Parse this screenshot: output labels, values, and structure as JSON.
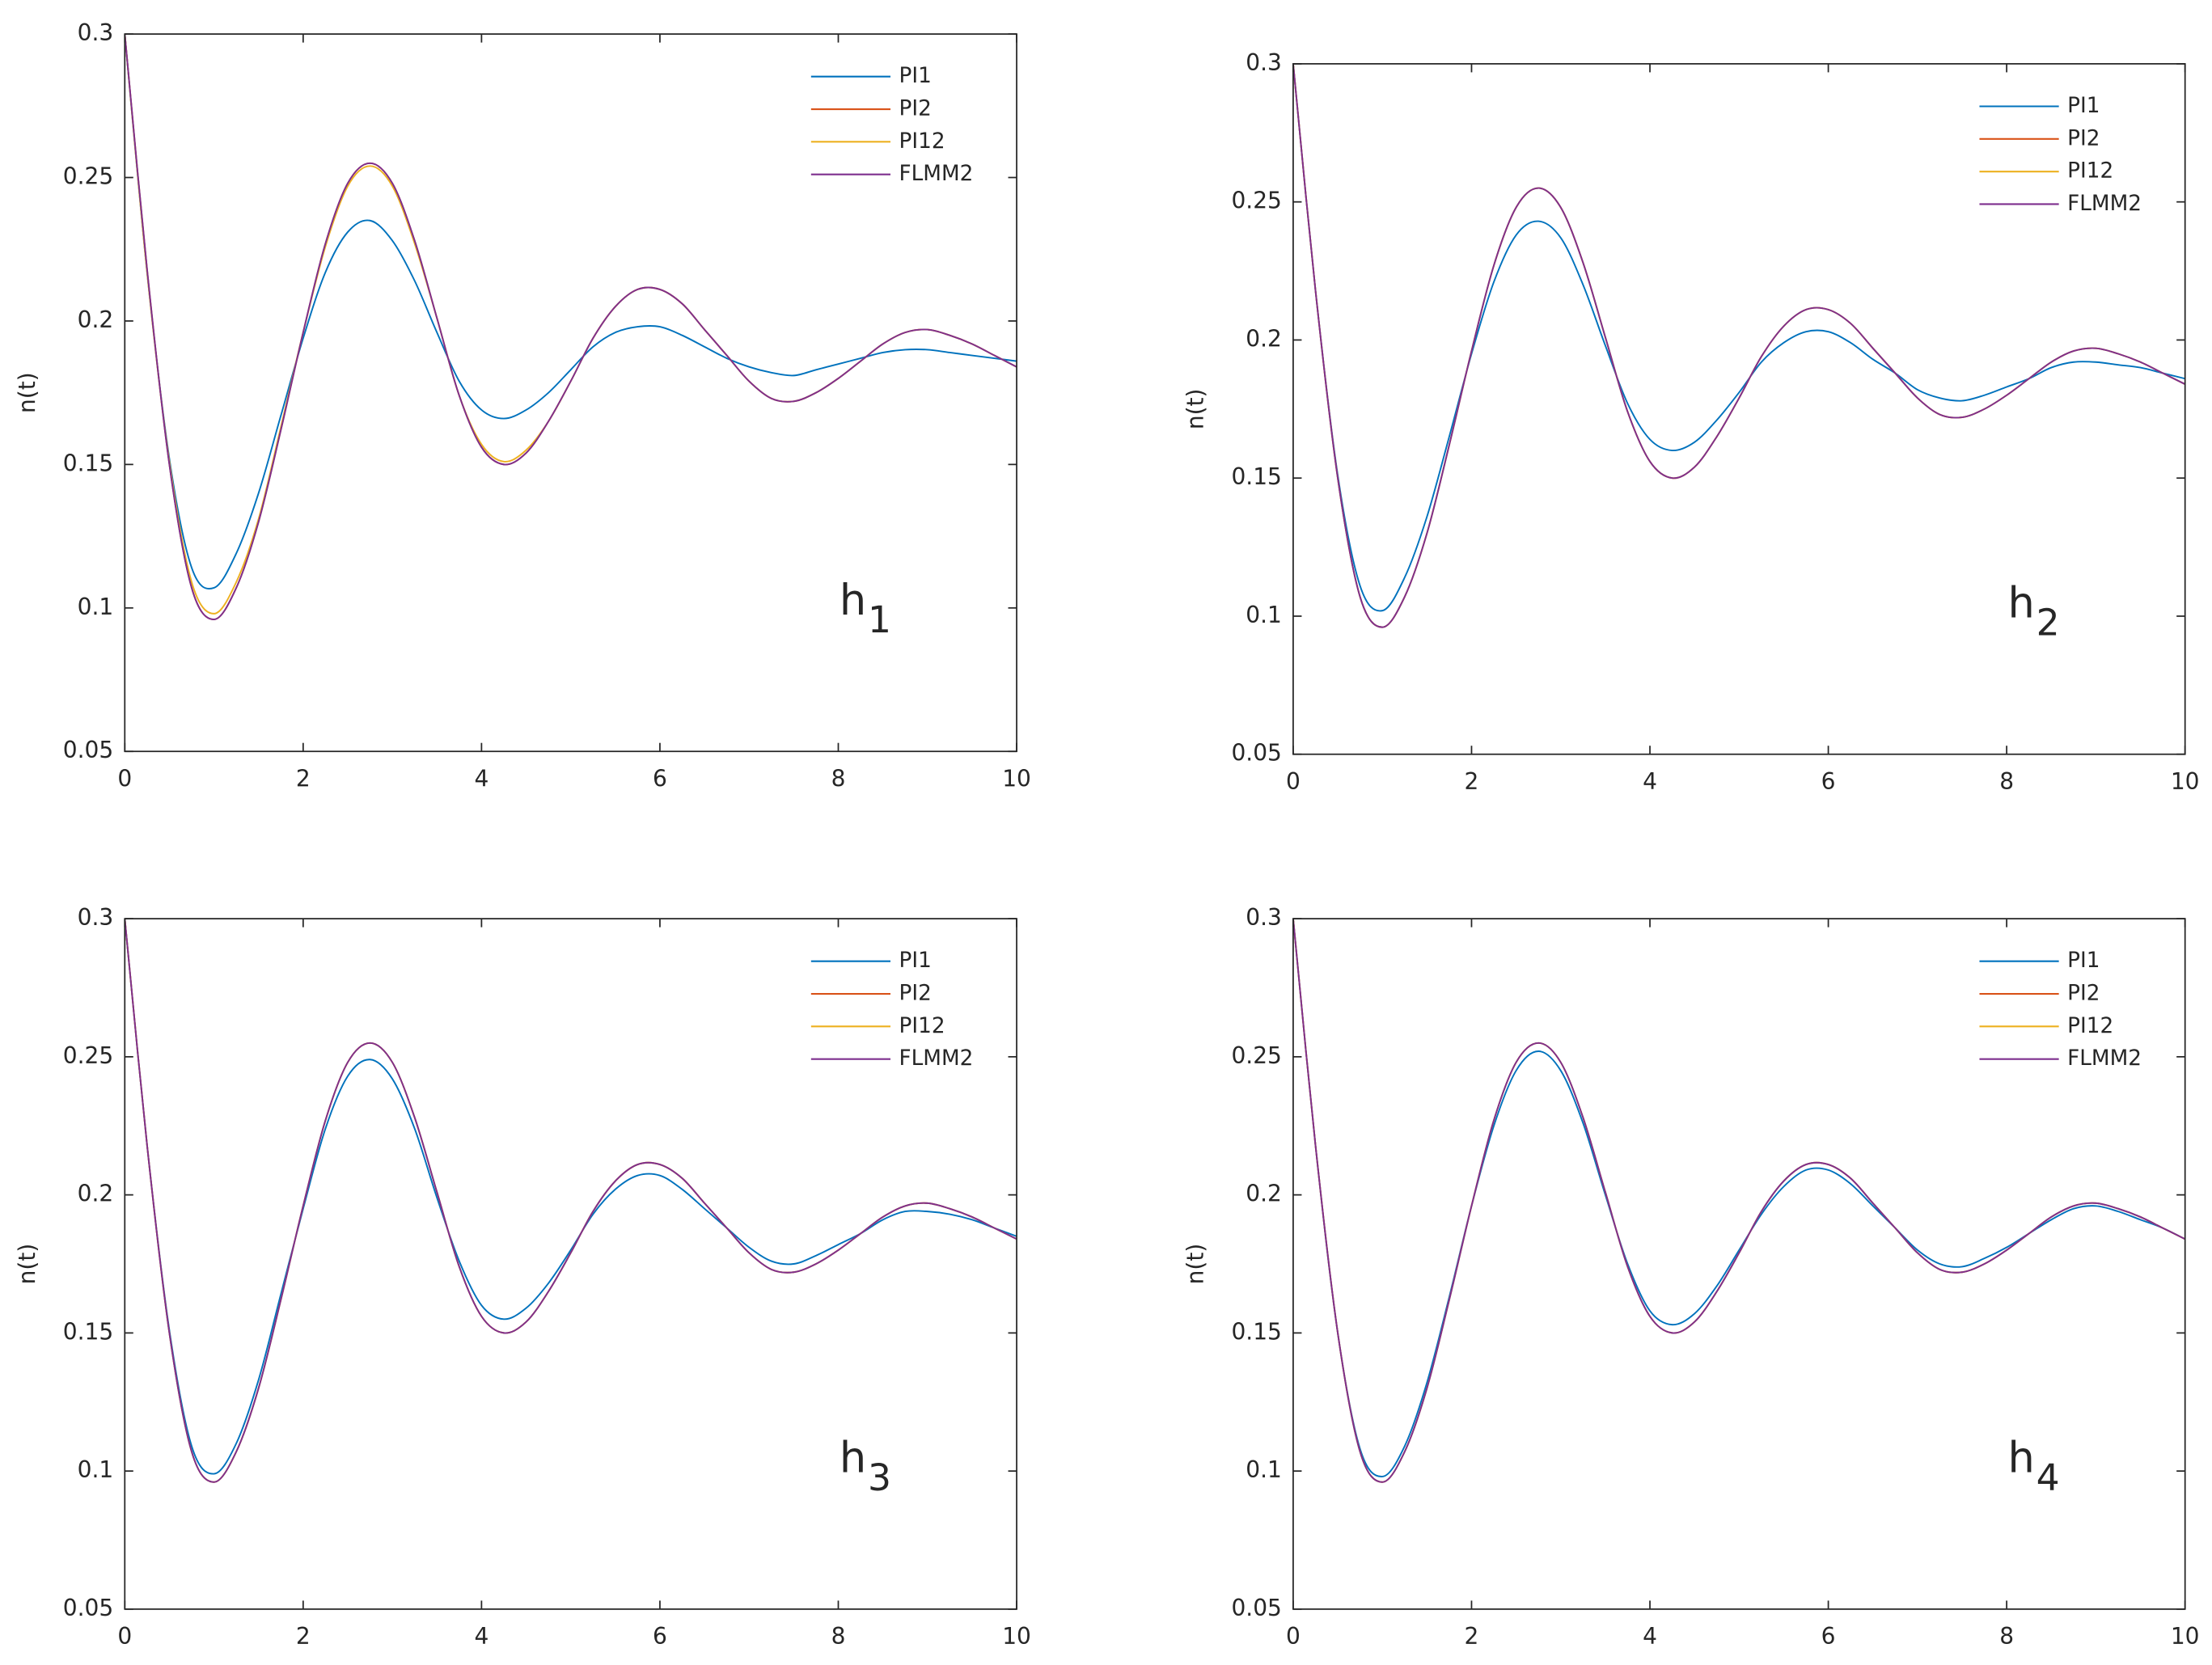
{
  "chart_data": [
    {
      "type": "line",
      "ylabel": "n(t)",
      "annotation": "h",
      "annotation_subscript": "1",
      "xlim": [
        0,
        10
      ],
      "ylim": [
        0.05,
        0.3
      ],
      "xticks": [
        0,
        2,
        4,
        6,
        8,
        10
      ],
      "yticks": [
        0.05,
        0.1,
        0.15,
        0.2,
        0.25,
        0.3
      ],
      "grid": false,
      "legend": "upper right",
      "x": [
        0,
        0.25,
        0.5,
        0.75,
        1,
        1.25,
        1.5,
        1.75,
        2,
        2.25,
        2.5,
        2.75,
        3,
        3.25,
        3.5,
        3.75,
        4,
        4.25,
        4.5,
        4.75,
        5,
        5.25,
        5.5,
        5.75,
        6,
        6.25,
        6.5,
        6.75,
        7,
        7.25,
        7.5,
        7.75,
        8,
        8.25,
        8.5,
        8.75,
        9,
        9.25,
        9.5,
        9.75,
        10
      ],
      "series": [
        {
          "name": "PI1",
          "color": "#0072BD",
          "values": [
            0.3,
            0.217,
            0.152,
            0.114,
            0.107,
            0.119,
            0.14,
            0.167,
            0.194,
            0.217,
            0.231,
            0.235,
            0.228,
            0.214,
            0.196,
            0.179,
            0.169,
            0.166,
            0.169,
            0.175,
            0.183,
            0.191,
            0.196,
            0.198,
            0.198,
            0.195,
            0.191,
            0.187,
            0.184,
            0.182,
            0.181,
            0.183,
            0.185,
            0.187,
            0.189,
            0.19,
            0.19,
            0.189,
            0.188,
            0.187,
            0.186
          ]
        },
        {
          "name": "PI2",
          "color": "#D95319",
          "values": [
            0.3,
            0.218,
            0.15,
            0.107,
            0.096,
            0.107,
            0.13,
            0.162,
            0.196,
            0.227,
            0.248,
            0.255,
            0.248,
            0.228,
            0.201,
            0.174,
            0.156,
            0.15,
            0.154,
            0.165,
            0.179,
            0.194,
            0.205,
            0.211,
            0.211,
            0.206,
            0.197,
            0.188,
            0.179,
            0.173,
            0.172,
            0.175,
            0.18,
            0.186,
            0.192,
            0.196,
            0.197,
            0.195,
            0.192,
            0.188,
            0.184
          ]
        },
        {
          "name": "PI12",
          "color": "#EDB120",
          "values": [
            0.3,
            0.217,
            0.151,
            0.109,
            0.098,
            0.109,
            0.131,
            0.163,
            0.196,
            0.226,
            0.247,
            0.254,
            0.247,
            0.227,
            0.201,
            0.174,
            0.157,
            0.151,
            0.155,
            0.165,
            0.179,
            0.194,
            0.205,
            0.211,
            0.211,
            0.206,
            0.197,
            0.188,
            0.179,
            0.173,
            0.172,
            0.175,
            0.18,
            0.186,
            0.192,
            0.196,
            0.197,
            0.195,
            0.192,
            0.188,
            0.184
          ]
        },
        {
          "name": "FLMM2",
          "color": "#7E2F8E",
          "values": [
            0.3,
            0.218,
            0.15,
            0.107,
            0.096,
            0.107,
            0.13,
            0.162,
            0.196,
            0.227,
            0.248,
            0.255,
            0.248,
            0.228,
            0.201,
            0.174,
            0.156,
            0.15,
            0.154,
            0.165,
            0.179,
            0.194,
            0.205,
            0.211,
            0.211,
            0.206,
            0.197,
            0.188,
            0.179,
            0.173,
            0.172,
            0.175,
            0.18,
            0.186,
            0.192,
            0.196,
            0.197,
            0.195,
            0.192,
            0.188,
            0.184
          ]
        }
      ]
    },
    {
      "type": "line",
      "ylabel": "n(t)",
      "annotation": "h",
      "annotation_subscript": "2",
      "xlim": [
        0,
        10
      ],
      "ylim": [
        0.05,
        0.3
      ],
      "xticks": [
        0,
        2,
        4,
        6,
        8,
        10
      ],
      "yticks": [
        0.05,
        0.1,
        0.15,
        0.2,
        0.25,
        0.3
      ],
      "grid": false,
      "legend": "upper right",
      "x": [
        0,
        0.25,
        0.5,
        0.75,
        1,
        1.25,
        1.5,
        1.75,
        2,
        2.25,
        2.5,
        2.75,
        3,
        3.25,
        3.5,
        3.75,
        4,
        4.25,
        4.5,
        4.75,
        5,
        5.25,
        5.5,
        5.75,
        6,
        6.25,
        6.5,
        6.75,
        7,
        7.25,
        7.5,
        7.75,
        8,
        8.25,
        8.5,
        8.75,
        9,
        9.25,
        9.5,
        9.75,
        10
      ],
      "series": [
        {
          "name": "PI1",
          "color": "#0072BD",
          "values": [
            0.3,
            0.218,
            0.151,
            0.111,
            0.102,
            0.114,
            0.136,
            0.165,
            0.195,
            0.221,
            0.238,
            0.243,
            0.237,
            0.22,
            0.198,
            0.177,
            0.164,
            0.16,
            0.163,
            0.171,
            0.181,
            0.192,
            0.199,
            0.203,
            0.203,
            0.199,
            0.193,
            0.188,
            0.182,
            0.179,
            0.178,
            0.18,
            0.183,
            0.186,
            0.19,
            0.192,
            0.192,
            0.191,
            0.19,
            0.188,
            0.186
          ]
        },
        {
          "name": "PI2",
          "color": "#D95319",
          "values": [
            0.3,
            0.218,
            0.15,
            0.107,
            0.096,
            0.107,
            0.13,
            0.162,
            0.196,
            0.227,
            0.248,
            0.255,
            0.248,
            0.228,
            0.201,
            0.174,
            0.156,
            0.15,
            0.154,
            0.165,
            0.179,
            0.194,
            0.205,
            0.211,
            0.211,
            0.206,
            0.197,
            0.188,
            0.179,
            0.173,
            0.172,
            0.175,
            0.18,
            0.186,
            0.192,
            0.196,
            0.197,
            0.195,
            0.192,
            0.188,
            0.184
          ]
        },
        {
          "name": "PI12",
          "color": "#EDB120",
          "values": [
            0.3,
            0.218,
            0.15,
            0.107,
            0.096,
            0.107,
            0.13,
            0.162,
            0.196,
            0.227,
            0.248,
            0.255,
            0.248,
            0.228,
            0.201,
            0.174,
            0.156,
            0.15,
            0.154,
            0.165,
            0.179,
            0.194,
            0.205,
            0.211,
            0.211,
            0.206,
            0.197,
            0.188,
            0.179,
            0.173,
            0.172,
            0.175,
            0.18,
            0.186,
            0.192,
            0.196,
            0.197,
            0.195,
            0.192,
            0.188,
            0.184
          ]
        },
        {
          "name": "FLMM2",
          "color": "#7E2F8E",
          "values": [
            0.3,
            0.218,
            0.15,
            0.107,
            0.096,
            0.107,
            0.13,
            0.162,
            0.196,
            0.227,
            0.248,
            0.255,
            0.248,
            0.228,
            0.201,
            0.174,
            0.156,
            0.15,
            0.154,
            0.165,
            0.179,
            0.194,
            0.205,
            0.211,
            0.211,
            0.206,
            0.197,
            0.188,
            0.179,
            0.173,
            0.172,
            0.175,
            0.18,
            0.186,
            0.192,
            0.196,
            0.197,
            0.195,
            0.192,
            0.188,
            0.184
          ]
        }
      ]
    },
    {
      "type": "line",
      "ylabel": "n(t)",
      "annotation": "h",
      "annotation_subscript": "3",
      "xlim": [
        0,
        10
      ],
      "ylim": [
        0.05,
        0.3
      ],
      "xticks": [
        0,
        2,
        4,
        6,
        8,
        10
      ],
      "yticks": [
        0.05,
        0.1,
        0.15,
        0.2,
        0.25,
        0.3
      ],
      "grid": false,
      "legend": "upper right",
      "x": [
        0,
        0.25,
        0.5,
        0.75,
        1,
        1.25,
        1.5,
        1.75,
        2,
        2.25,
        2.5,
        2.75,
        3,
        3.25,
        3.5,
        3.75,
        4,
        4.25,
        4.5,
        4.75,
        5,
        5.25,
        5.5,
        5.75,
        6,
        6.25,
        6.5,
        6.75,
        7,
        7.25,
        7.5,
        7.75,
        8,
        8.25,
        8.5,
        8.75,
        9,
        9.25,
        9.5,
        9.75,
        10
      ],
      "series": [
        {
          "name": "PI1",
          "color": "#0072BD",
          "values": [
            0.3,
            0.218,
            0.151,
            0.109,
            0.099,
            0.11,
            0.133,
            0.164,
            0.195,
            0.224,
            0.243,
            0.249,
            0.242,
            0.224,
            0.199,
            0.176,
            0.16,
            0.155,
            0.159,
            0.168,
            0.18,
            0.193,
            0.202,
            0.207,
            0.207,
            0.202,
            0.195,
            0.188,
            0.181,
            0.176,
            0.175,
            0.178,
            0.182,
            0.186,
            0.191,
            0.194,
            0.194,
            0.193,
            0.191,
            0.188,
            0.185
          ]
        },
        {
          "name": "PI2",
          "color": "#D95319",
          "values": [
            0.3,
            0.218,
            0.15,
            0.107,
            0.096,
            0.107,
            0.13,
            0.162,
            0.196,
            0.227,
            0.248,
            0.255,
            0.248,
            0.228,
            0.201,
            0.174,
            0.156,
            0.15,
            0.154,
            0.165,
            0.179,
            0.194,
            0.205,
            0.211,
            0.211,
            0.206,
            0.197,
            0.188,
            0.179,
            0.173,
            0.172,
            0.175,
            0.18,
            0.186,
            0.192,
            0.196,
            0.197,
            0.195,
            0.192,
            0.188,
            0.184
          ]
        },
        {
          "name": "PI12",
          "color": "#EDB120",
          "values": [
            0.3,
            0.218,
            0.15,
            0.107,
            0.096,
            0.107,
            0.13,
            0.162,
            0.196,
            0.227,
            0.248,
            0.255,
            0.248,
            0.228,
            0.201,
            0.174,
            0.156,
            0.15,
            0.154,
            0.165,
            0.179,
            0.194,
            0.205,
            0.211,
            0.211,
            0.206,
            0.197,
            0.188,
            0.179,
            0.173,
            0.172,
            0.175,
            0.18,
            0.186,
            0.192,
            0.196,
            0.197,
            0.195,
            0.192,
            0.188,
            0.184
          ]
        },
        {
          "name": "FLMM2",
          "color": "#7E2F8E",
          "values": [
            0.3,
            0.218,
            0.15,
            0.107,
            0.096,
            0.107,
            0.13,
            0.162,
            0.196,
            0.227,
            0.248,
            0.255,
            0.248,
            0.228,
            0.201,
            0.174,
            0.156,
            0.15,
            0.154,
            0.165,
            0.179,
            0.194,
            0.205,
            0.211,
            0.211,
            0.206,
            0.197,
            0.188,
            0.179,
            0.173,
            0.172,
            0.175,
            0.18,
            0.186,
            0.192,
            0.196,
            0.197,
            0.195,
            0.192,
            0.188,
            0.184
          ]
        }
      ]
    },
    {
      "type": "line",
      "ylabel": "n(t)",
      "annotation": "h",
      "annotation_subscript": "4",
      "xlim": [
        0,
        10
      ],
      "ylim": [
        0.05,
        0.3
      ],
      "xticks": [
        0,
        2,
        4,
        6,
        8,
        10
      ],
      "yticks": [
        0.05,
        0.1,
        0.15,
        0.2,
        0.25,
        0.3
      ],
      "grid": false,
      "legend": "upper right",
      "x": [
        0,
        0.25,
        0.5,
        0.75,
        1,
        1.25,
        1.5,
        1.75,
        2,
        2.25,
        2.5,
        2.75,
        3,
        3.25,
        3.5,
        3.75,
        4,
        4.25,
        4.5,
        4.75,
        5,
        5.25,
        5.5,
        5.75,
        6,
        6.25,
        6.5,
        6.75,
        7,
        7.25,
        7.5,
        7.75,
        8,
        8.25,
        8.5,
        8.75,
        9,
        9.25,
        9.5,
        9.75,
        10
      ],
      "series": [
        {
          "name": "PI1",
          "color": "#0072BD",
          "values": [
            0.3,
            0.218,
            0.15,
            0.108,
            0.098,
            0.109,
            0.132,
            0.163,
            0.196,
            0.225,
            0.245,
            0.252,
            0.245,
            0.226,
            0.2,
            0.175,
            0.158,
            0.153,
            0.157,
            0.167,
            0.18,
            0.193,
            0.203,
            0.209,
            0.209,
            0.204,
            0.196,
            0.188,
            0.18,
            0.175,
            0.174,
            0.177,
            0.181,
            0.186,
            0.191,
            0.195,
            0.196,
            0.194,
            0.191,
            0.188,
            0.184
          ]
        },
        {
          "name": "PI2",
          "color": "#D95319",
          "values": [
            0.3,
            0.218,
            0.15,
            0.107,
            0.096,
            0.107,
            0.13,
            0.162,
            0.196,
            0.227,
            0.248,
            0.255,
            0.248,
            0.228,
            0.201,
            0.174,
            0.156,
            0.15,
            0.154,
            0.165,
            0.179,
            0.194,
            0.205,
            0.211,
            0.211,
            0.206,
            0.197,
            0.188,
            0.179,
            0.173,
            0.172,
            0.175,
            0.18,
            0.186,
            0.192,
            0.196,
            0.197,
            0.195,
            0.192,
            0.188,
            0.184
          ]
        },
        {
          "name": "PI12",
          "color": "#EDB120",
          "values": [
            0.3,
            0.218,
            0.15,
            0.107,
            0.096,
            0.107,
            0.13,
            0.162,
            0.196,
            0.227,
            0.248,
            0.255,
            0.248,
            0.228,
            0.201,
            0.174,
            0.156,
            0.15,
            0.154,
            0.165,
            0.179,
            0.194,
            0.205,
            0.211,
            0.211,
            0.206,
            0.197,
            0.188,
            0.179,
            0.173,
            0.172,
            0.175,
            0.18,
            0.186,
            0.192,
            0.196,
            0.197,
            0.195,
            0.192,
            0.188,
            0.184
          ]
        },
        {
          "name": "FLMM2",
          "color": "#7E2F8E",
          "values": [
            0.3,
            0.218,
            0.15,
            0.107,
            0.096,
            0.107,
            0.13,
            0.162,
            0.196,
            0.227,
            0.248,
            0.255,
            0.248,
            0.228,
            0.201,
            0.174,
            0.156,
            0.15,
            0.154,
            0.165,
            0.179,
            0.194,
            0.205,
            0.211,
            0.211,
            0.206,
            0.197,
            0.188,
            0.179,
            0.173,
            0.172,
            0.175,
            0.18,
            0.186,
            0.192,
            0.196,
            0.197,
            0.195,
            0.192,
            0.188,
            0.184
          ]
        }
      ]
    }
  ]
}
